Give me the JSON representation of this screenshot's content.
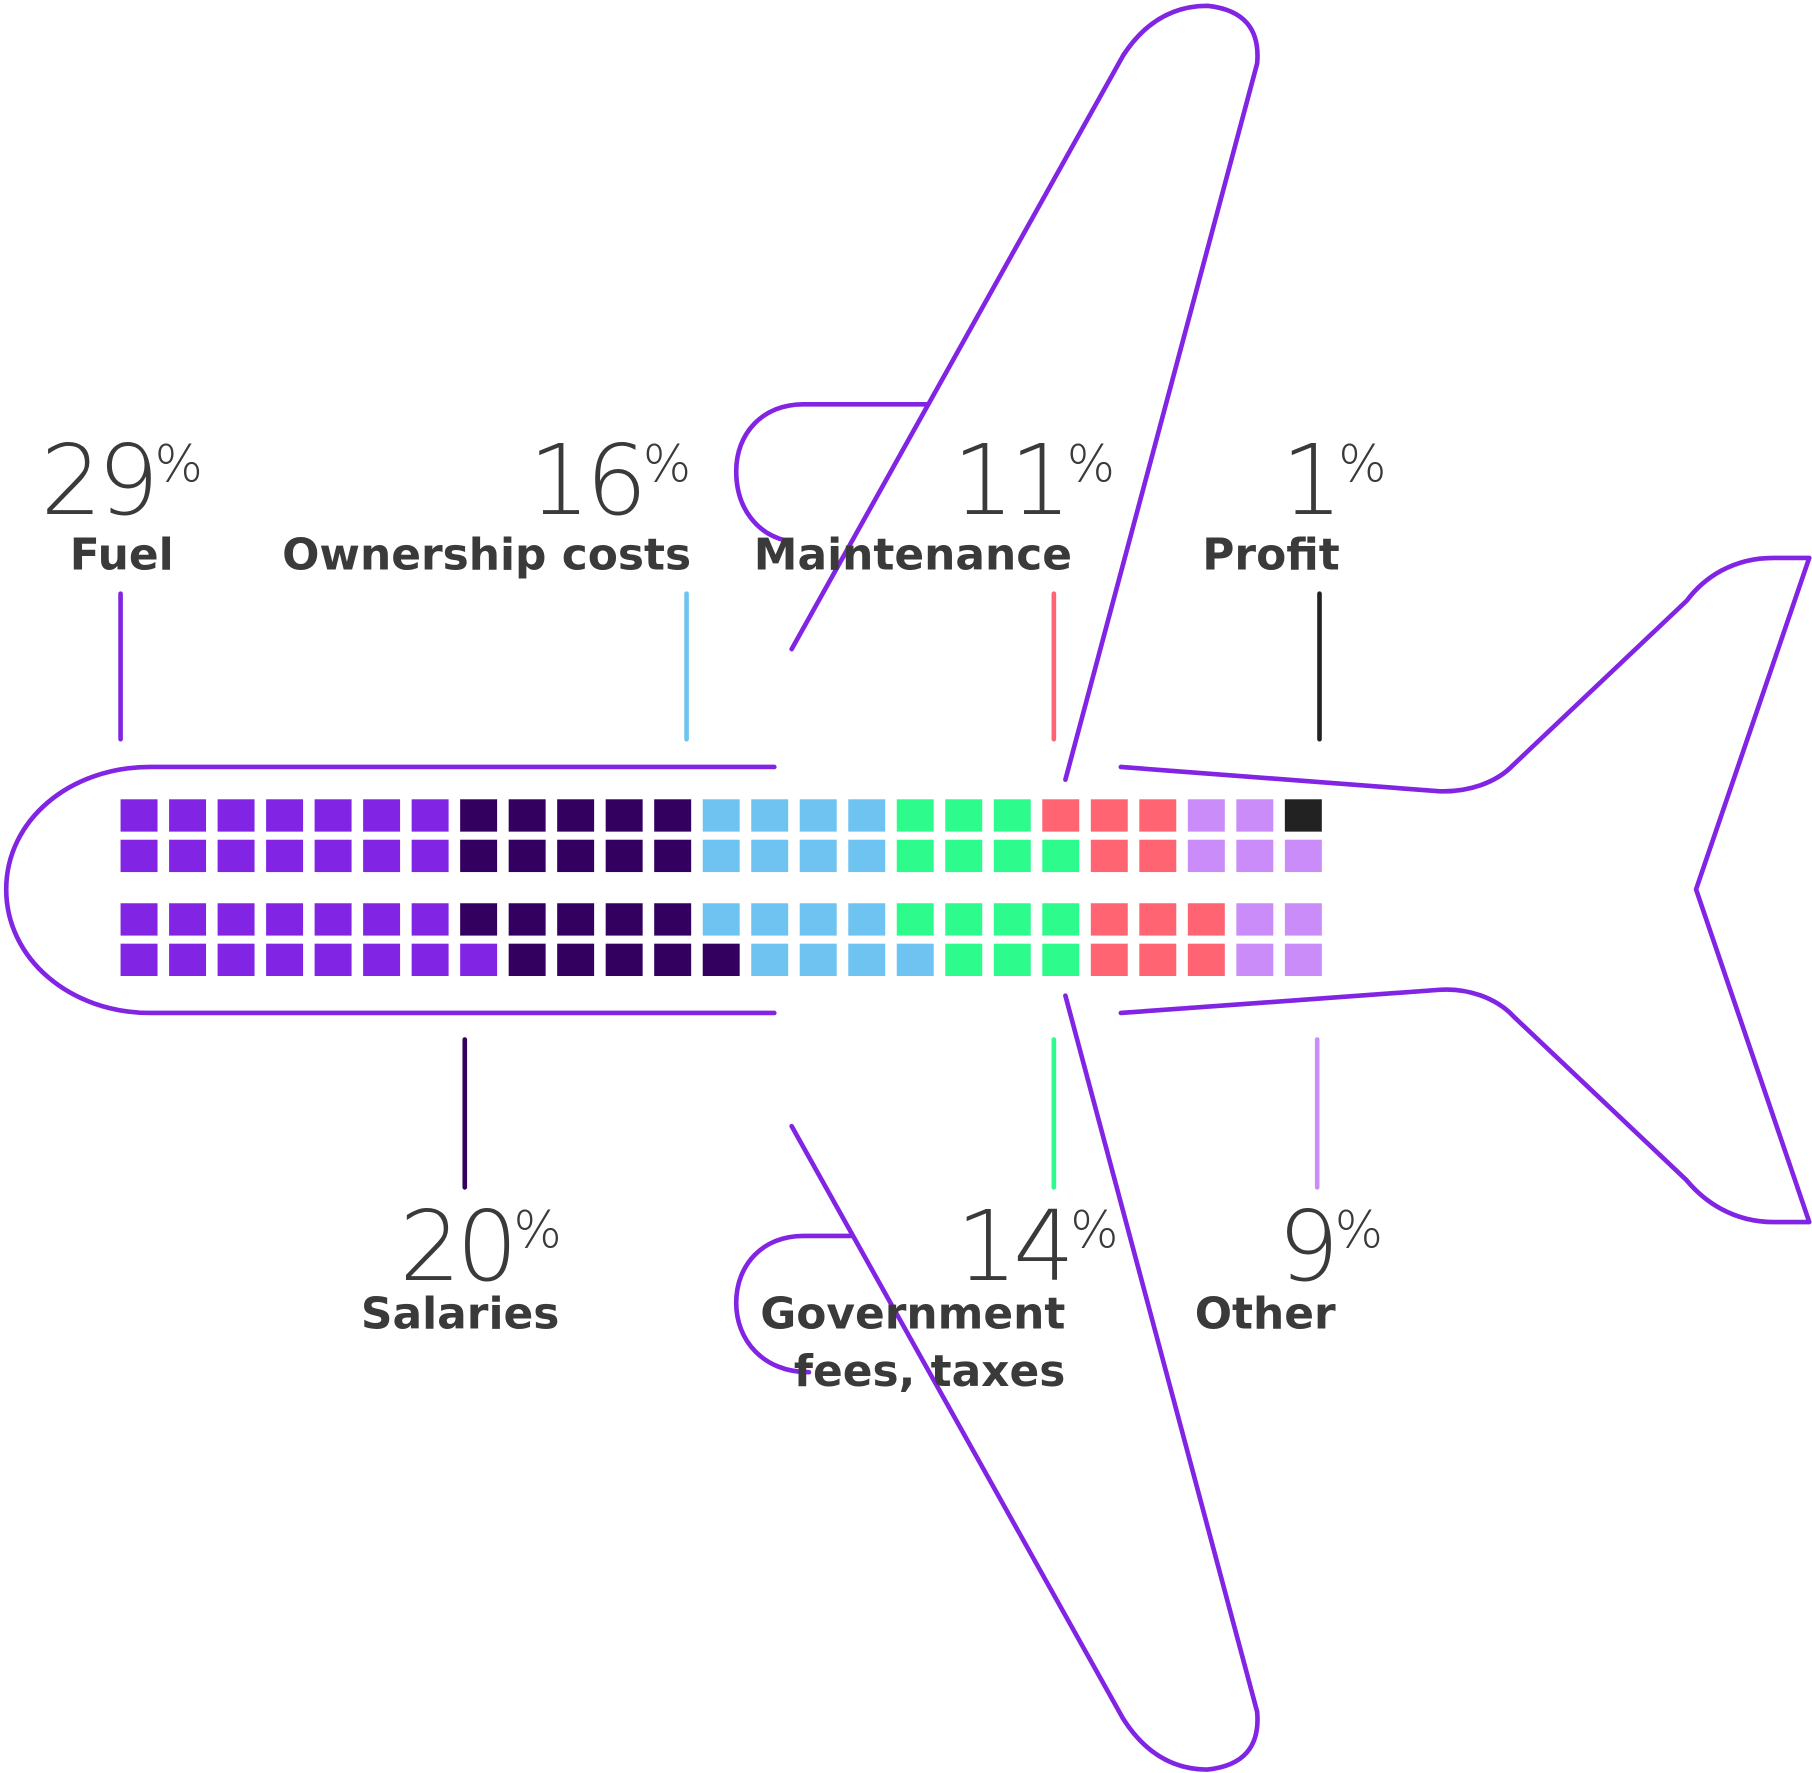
{
  "chart_data": {
    "type": "waffle",
    "categories": [
      "Fuel",
      "Salaries",
      "Ownership costs",
      "Government fees, taxes",
      "Maintenance",
      "Other",
      "Profit"
    ],
    "values": [
      29,
      20,
      16,
      14,
      11,
      9,
      1
    ],
    "unit": "%",
    "colors": [
      "#8224e3",
      "#33005f",
      "#6fc3f0",
      "#2dfc8d",
      "#ff6472",
      "#c98cf9",
      "#222222"
    ]
  }
}
